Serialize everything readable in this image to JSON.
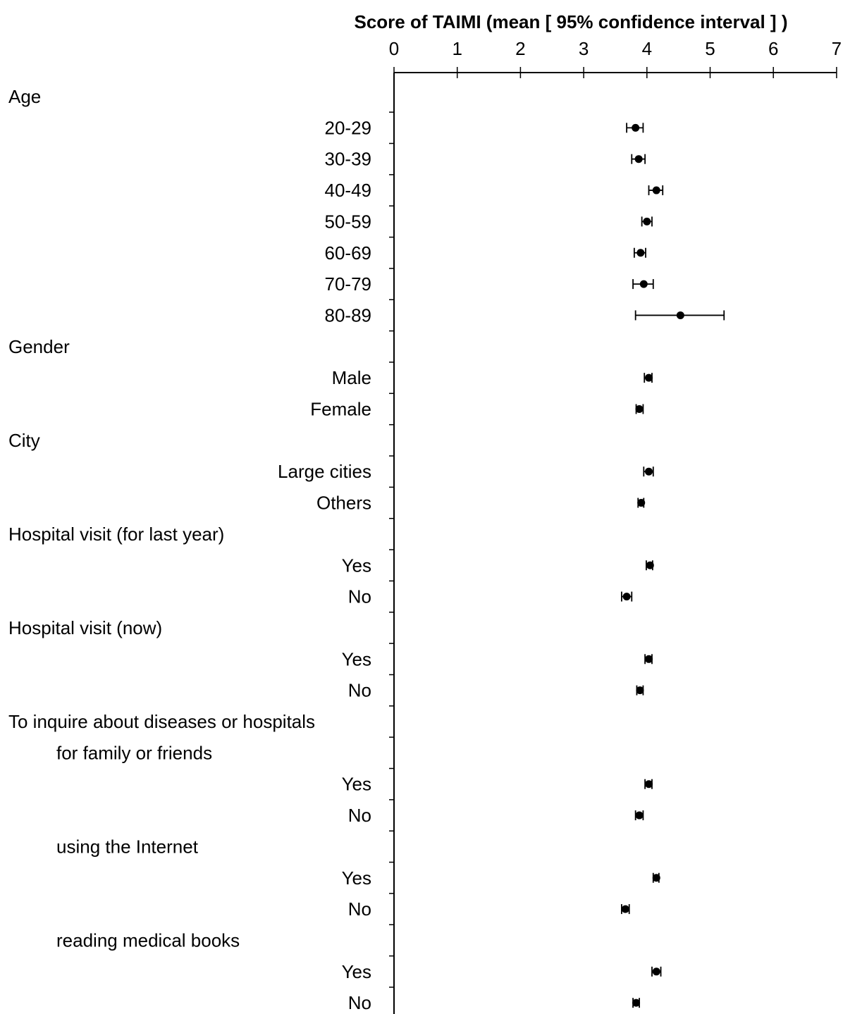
{
  "chart_data": {
    "type": "scatter",
    "title": "",
    "xlabel": "Score of TAIMI (mean [ 95% confidence interval ] )",
    "ylabel": "",
    "xlim": [
      0,
      7
    ],
    "x_ticks": [
      "0",
      "1",
      "2",
      "3",
      "4",
      "5",
      "6",
      "7"
    ],
    "grid": false,
    "legend": "none",
    "marker_color": "#000000",
    "rows": [
      {
        "label": "Age",
        "kind": "header",
        "align": "left"
      },
      {
        "label": "20-29",
        "kind": "item",
        "mean": 3.82,
        "ci": [
          3.68,
          3.94
        ]
      },
      {
        "label": "30-39",
        "kind": "item",
        "mean": 3.87,
        "ci": [
          3.76,
          3.97
        ]
      },
      {
        "label": "40-49",
        "kind": "item",
        "mean": 4.15,
        "ci": [
          4.03,
          4.25
        ]
      },
      {
        "label": "50-59",
        "kind": "item",
        "mean": 4.0,
        "ci": [
          3.92,
          4.08
        ]
      },
      {
        "label": "60-69",
        "kind": "item",
        "mean": 3.9,
        "ci": [
          3.8,
          3.98
        ]
      },
      {
        "label": "70-79",
        "kind": "item",
        "mean": 3.95,
        "ci": [
          3.78,
          4.1
        ]
      },
      {
        "label": "80-89",
        "kind": "item",
        "mean": 4.53,
        "ci": [
          3.82,
          5.22
        ]
      },
      {
        "label": "Gender",
        "kind": "header",
        "align": "left"
      },
      {
        "label": "Male",
        "kind": "item",
        "mean": 4.03,
        "ci": [
          3.96,
          4.08
        ]
      },
      {
        "label": "Female",
        "kind": "item",
        "mean": 3.88,
        "ci": [
          3.83,
          3.94
        ]
      },
      {
        "label": "City",
        "kind": "header",
        "align": "left"
      },
      {
        "label": "Large cities",
        "kind": "item",
        "mean": 4.03,
        "ci": [
          3.95,
          4.1
        ]
      },
      {
        "label": "Others",
        "kind": "item",
        "mean": 3.91,
        "ci": [
          3.86,
          3.95
        ]
      },
      {
        "label": "Hospital visit (for last year)",
        "kind": "header",
        "align": "left"
      },
      {
        "label": "Yes",
        "kind": "item",
        "mean": 4.05,
        "ci": [
          3.99,
          4.09
        ]
      },
      {
        "label": "No",
        "kind": "item",
        "mean": 3.68,
        "ci": [
          3.6,
          3.76
        ]
      },
      {
        "label": "Hospital visit (now)",
        "kind": "header",
        "align": "left"
      },
      {
        "label": "Yes",
        "kind": "item",
        "mean": 4.03,
        "ci": [
          3.97,
          4.08
        ]
      },
      {
        "label": "No",
        "kind": "item",
        "mean": 3.89,
        "ci": [
          3.84,
          3.94
        ]
      },
      {
        "label": "To inquire about diseases or hospitals",
        "kind": "header",
        "align": "left"
      },
      {
        "label": "for family or friends",
        "kind": "header",
        "align": "indent"
      },
      {
        "label": "Yes",
        "kind": "item",
        "mean": 4.03,
        "ci": [
          3.97,
          4.08
        ]
      },
      {
        "label": "No",
        "kind": "item",
        "mean": 3.88,
        "ci": [
          3.82,
          3.94
        ]
      },
      {
        "label": "using the Internet",
        "kind": "header",
        "align": "indent"
      },
      {
        "label": "Yes",
        "kind": "item",
        "mean": 4.15,
        "ci": [
          4.1,
          4.19
        ]
      },
      {
        "label": "No",
        "kind": "item",
        "mean": 3.66,
        "ci": [
          3.6,
          3.72
        ]
      },
      {
        "label": "reading medical books",
        "kind": "header",
        "align": "indent"
      },
      {
        "label": "Yes",
        "kind": "item",
        "mean": 4.15,
        "ci": [
          4.08,
          4.22
        ]
      },
      {
        "label": "No",
        "kind": "item",
        "mean": 3.83,
        "ci": [
          3.78,
          3.88
        ]
      }
    ]
  }
}
